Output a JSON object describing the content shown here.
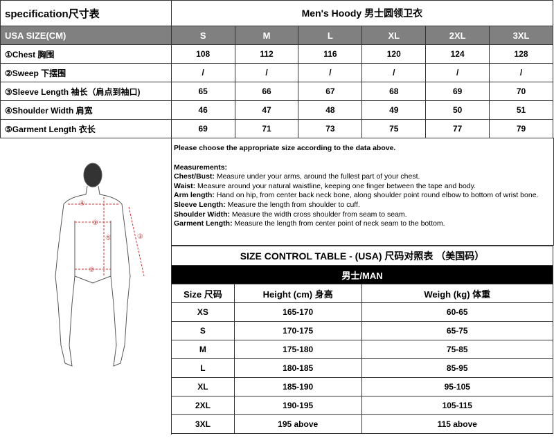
{
  "spec": {
    "title": "specification尺寸表",
    "product": "Men's Hoody 男士圆领卫衣",
    "header_label": "USA  SIZE(CM)",
    "sizes": [
      "S",
      "M",
      "L",
      "XL",
      "2XL",
      "3XL"
    ],
    "rows": [
      {
        "label": "①Chest 胸围",
        "values": [
          "108",
          "112",
          "116",
          "120",
          "124",
          "128"
        ]
      },
      {
        "label": "②Sweep 下摆围",
        "values": [
          "/",
          "/",
          "/",
          "/",
          "/",
          "/"
        ]
      },
      {
        "label": "③Sleeve Length 袖长（肩点到袖口)",
        "values": [
          "65",
          "66",
          "67",
          "68",
          "69",
          "70"
        ]
      },
      {
        "label": "④Shoulder Width 肩宽",
        "values": [
          "46",
          "47",
          "48",
          "49",
          "50",
          "51"
        ]
      },
      {
        "label": "⑤Garment Length 衣长",
        "values": [
          "69",
          "71",
          "73",
          "75",
          "77",
          "79"
        ]
      }
    ]
  },
  "figure": {
    "markers": [
      "①",
      "②",
      "③",
      "④",
      "⑤"
    ]
  },
  "notes": {
    "intro": "Please choose the appropriate size according to the data above.",
    "heading": "Measurements:",
    "items": [
      {
        "term": "Chest/Bust:",
        "text": " Measure under your arms, around the fullest part of your chest."
      },
      {
        "term": "Waist:",
        "text": " Measure around your natural waistline, keeping one finger between the tape and body."
      },
      {
        "term": "Arm length:",
        "text": " Hand on hip, from center back neck bone, along shoulder point round elbow to bottom of wrist bone."
      },
      {
        "term": "Sleeve Length:",
        "text": " Measure the length from shoulder to cuff."
      },
      {
        "term": "Shoulder Width:",
        "text": " Measure the width cross shoulder from seam to seam."
      },
      {
        "term": "Garment Length:",
        "text": " Measure the length from center point of neck seam to the bottom."
      }
    ]
  },
  "control": {
    "title": "SIZE CONTROL TABLE - (USA) 尺码对照表 （美国码）",
    "group": "男士/MAN",
    "headers": [
      "Size 尺码",
      "Height (cm) 身高",
      "Weigh (kg) 体重"
    ],
    "rows": [
      [
        "XS",
        "165-170",
        "60-65"
      ],
      [
        "S",
        "170-175",
        "65-75"
      ],
      [
        "M",
        "175-180",
        "75-85"
      ],
      [
        "L",
        "180-185",
        "85-95"
      ],
      [
        "XL",
        "185-190",
        "95-105"
      ],
      [
        "2XL",
        "190-195",
        "105-115"
      ],
      [
        "3XL",
        "195 above",
        "115 above"
      ]
    ]
  }
}
